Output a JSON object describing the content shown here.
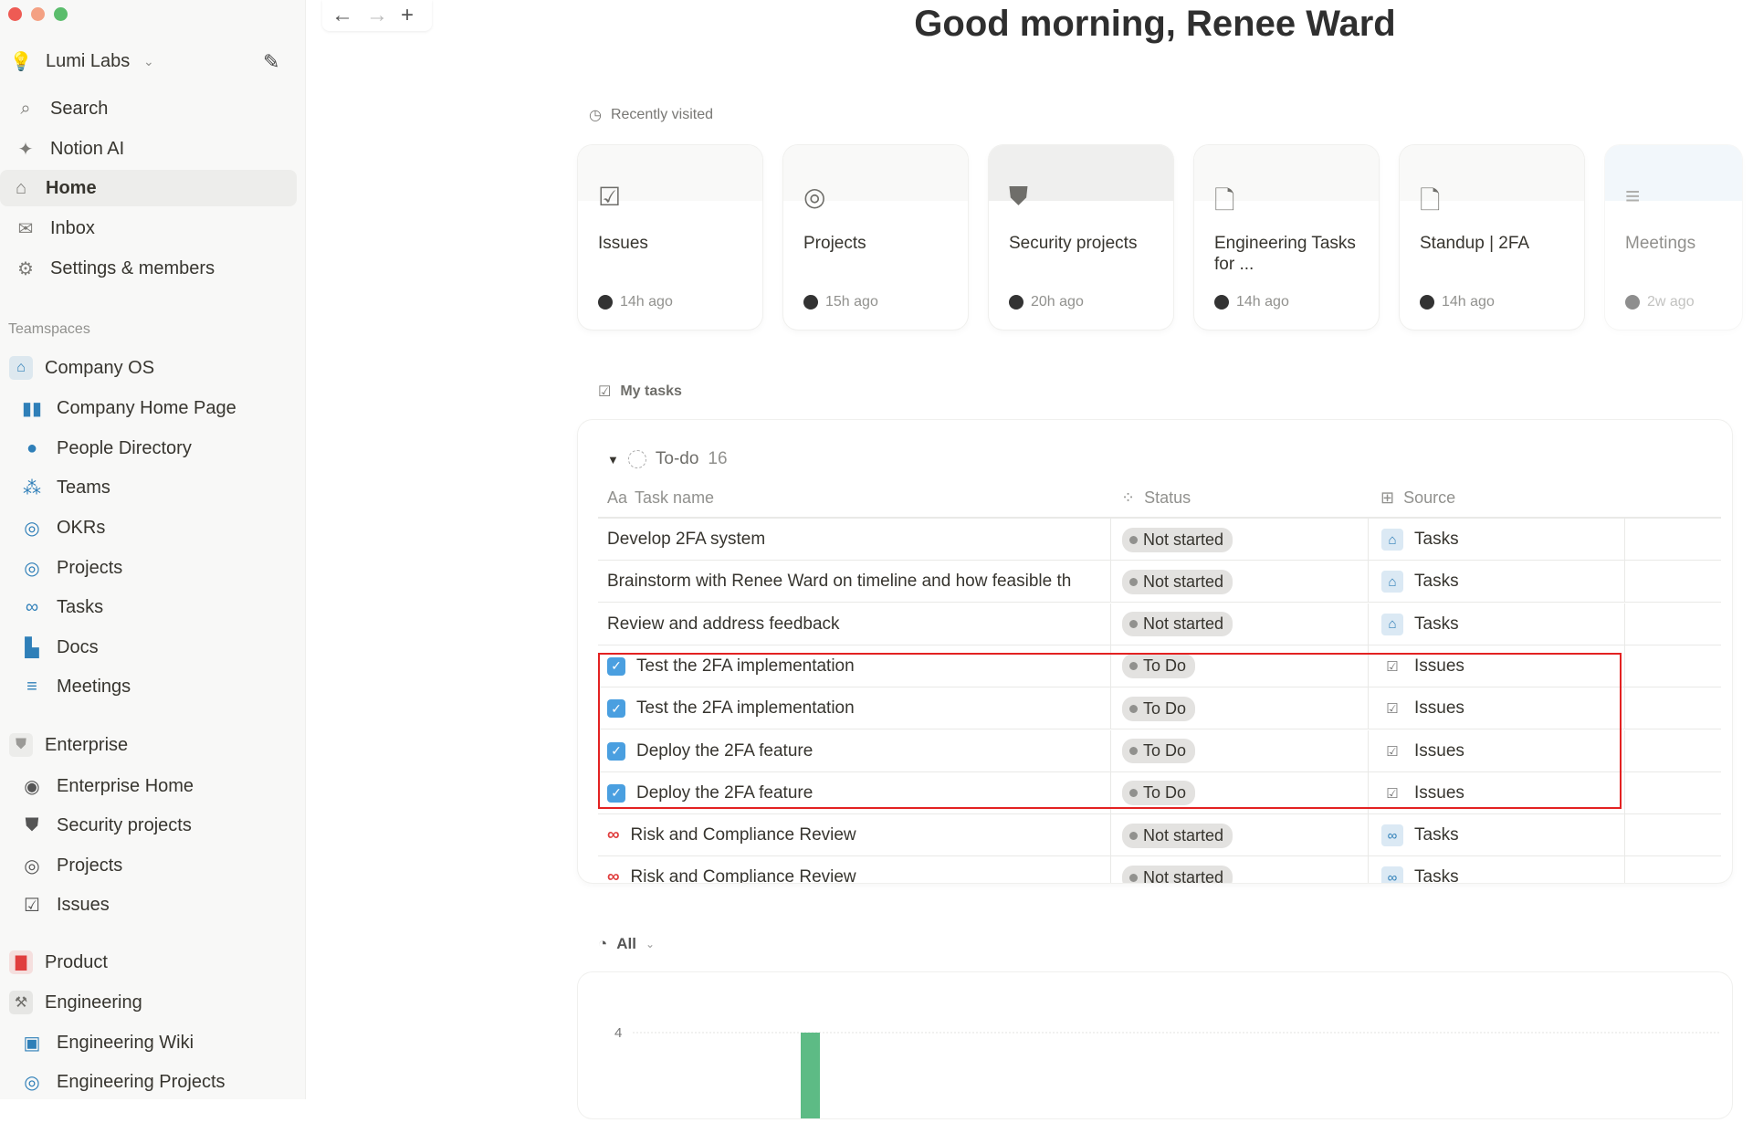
{
  "window": {
    "controls": [
      "close",
      "minimize",
      "maximize"
    ]
  },
  "sidebar": {
    "workspace": "Lumi Labs",
    "top_items": [
      {
        "label": "Search",
        "icon": "search-icon"
      },
      {
        "label": "Notion AI",
        "icon": "sparkle-icon"
      },
      {
        "label": "Home",
        "icon": "home-icon",
        "active": true
      },
      {
        "label": "Inbox",
        "icon": "inbox-icon"
      },
      {
        "label": "Settings & members",
        "icon": "gear-icon"
      }
    ],
    "section_label": "Teamspaces",
    "teamspaces": [
      {
        "label": "Company OS",
        "icon": "house-icon",
        "color": "#2f7fb8",
        "children": [
          {
            "label": "Company Home Page",
            "icon": "book-icon"
          },
          {
            "label": "People Directory",
            "icon": "person-icon"
          },
          {
            "label": "Teams",
            "icon": "people-icon"
          },
          {
            "label": "OKRs",
            "icon": "target-icon"
          },
          {
            "label": "Projects",
            "icon": "projects-icon"
          },
          {
            "label": "Tasks",
            "icon": "binoculars-icon"
          },
          {
            "label": "Docs",
            "icon": "docs-icon"
          },
          {
            "label": "Meetings",
            "icon": "meetings-icon"
          }
        ]
      },
      {
        "label": "Enterprise",
        "icon": "shield-icon",
        "color": "#9b9a97",
        "children": [
          {
            "label": "Enterprise Home",
            "icon": "compass-icon"
          },
          {
            "label": "Security projects",
            "icon": "shield-icon"
          },
          {
            "label": "Projects",
            "icon": "target-icon"
          },
          {
            "label": "Issues",
            "icon": "checkbox-icon"
          }
        ]
      },
      {
        "label": "Product",
        "icon": "briefcase-icon",
        "color": "#e03e3e",
        "children": []
      },
      {
        "label": "Engineering",
        "icon": "hammer-icon",
        "color": "#6f6e6a",
        "children": [
          {
            "label": "Engineering Wiki",
            "icon": "terminal-icon"
          },
          {
            "label": "Engineering Projects",
            "icon": "projects-icon"
          }
        ]
      }
    ]
  },
  "nav": {
    "back": "←",
    "forward": "→",
    "new": "+"
  },
  "header": {
    "greeting": "Good morning, Renee Ward"
  },
  "recent": {
    "label": "Recently visited",
    "cards": [
      {
        "title": "Issues",
        "time": "14h ago",
        "icon": "checkbox-icon"
      },
      {
        "title": "Projects",
        "time": "15h ago",
        "icon": "target-icon"
      },
      {
        "title": "Security projects",
        "time": "20h ago",
        "icon": "shield-icon"
      },
      {
        "title": "Engineering Tasks for ...",
        "time": "14h ago",
        "icon": "document-icon"
      },
      {
        "title": "Standup | 2FA",
        "time": "14h ago",
        "icon": "document-icon"
      },
      {
        "title": "Meetings",
        "time": "2w ago",
        "icon": "meetings-icon"
      }
    ]
  },
  "tasks": {
    "label": "My tasks",
    "group": "To-do",
    "count": "16",
    "columns": [
      "Task name",
      "Status",
      "Source"
    ],
    "column_icons": [
      "Aa",
      "status-icon",
      "table-icon"
    ],
    "rows": [
      {
        "name": "Develop 2FA system",
        "status": "Not started",
        "source": "Tasks",
        "icon": "none",
        "src_icon": "house-icon"
      },
      {
        "name": "Brainstorm with Renee Ward on timeline and how feasible th",
        "status": "Not started",
        "source": "Tasks",
        "icon": "none",
        "src_icon": "house-icon"
      },
      {
        "name": "Review and address feedback",
        "status": "Not started",
        "source": "Tasks",
        "icon": "none",
        "src_icon": "house-icon"
      },
      {
        "name": "Test the 2FA implementation",
        "status": "To Do",
        "source": "Issues",
        "icon": "checkbox-icon",
        "src_icon": "checkbox-icon"
      },
      {
        "name": "Test the 2FA implementation",
        "status": "To Do",
        "source": "Issues",
        "icon": "checkbox-icon",
        "src_icon": "checkbox-icon"
      },
      {
        "name": "Deploy the 2FA feature",
        "status": "To Do",
        "source": "Issues",
        "icon": "checkbox-icon",
        "src_icon": "checkbox-icon"
      },
      {
        "name": "Deploy the 2FA feature",
        "status": "To Do",
        "source": "Issues",
        "icon": "checkbox-icon",
        "src_icon": "checkbox-icon"
      },
      {
        "name": "Risk and Compliance Review",
        "status": "Not started",
        "source": "Tasks",
        "icon": "binoculars-icon",
        "src_icon": "binoculars-icon"
      },
      {
        "name": "Risk and Compliance Review",
        "status": "Not started",
        "source": "Tasks",
        "icon": "binoculars-icon",
        "src_icon": "binoculars-icon"
      }
    ]
  },
  "chart": {
    "filter": "All",
    "highlight_color": "#e32222"
  },
  "chart_data": {
    "type": "bar",
    "ytick_labels": [
      "4"
    ],
    "bar_color": "#5dbb85",
    "values": [
      4
    ],
    "grid": true
  }
}
